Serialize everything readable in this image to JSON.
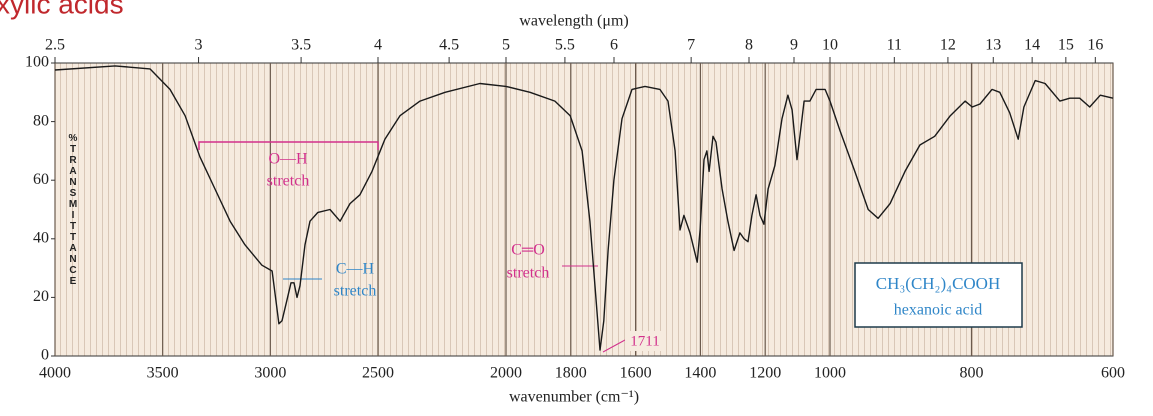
{
  "chart_data": {
    "type": "line",
    "title": "xylic acids",
    "xlabel": "wavenumber (cm⁻¹)",
    "x2label": "wavelength (μm)",
    "ylabel": "%TRANSMITTANCE",
    "xlim": [
      4000,
      600
    ],
    "x_scale_breaks": [
      2500,
      2000,
      1000
    ],
    "xticks": [
      4000,
      3500,
      3000,
      2500,
      2000,
      1800,
      1600,
      1400,
      1200,
      1000,
      800,
      600
    ],
    "x2ticks": [
      2.5,
      3,
      3.5,
      4,
      4.5,
      5,
      5.5,
      6,
      7,
      8,
      9,
      10,
      11,
      12,
      13,
      14,
      15,
      16
    ],
    "ylim": [
      0,
      100
    ],
    "yticks": [
      0,
      20,
      40,
      60,
      80,
      100
    ],
    "grid": true,
    "color": "#1a1a1a",
    "x": [
      4000,
      3721,
      3559,
      3466,
      3396,
      3327,
      3257,
      3187,
      3118,
      3039,
      2992,
      2974,
      2960,
      2946,
      2923,
      2904,
      2890,
      2876,
      2862,
      2839,
      2816,
      2779,
      2723,
      2676,
      2630,
      2584,
      2528,
      2473,
      2414,
      2336,
      2238,
      2102,
      2000,
      1926,
      1849,
      1802,
      1765,
      1741,
      1722,
      1710,
      1698,
      1685,
      1667,
      1642,
      1611,
      1571,
      1525,
      1500,
      1478,
      1463,
      1451,
      1432,
      1410,
      1401,
      1389,
      1380,
      1373,
      1361,
      1352,
      1333,
      1315,
      1296,
      1278,
      1265,
      1253,
      1241,
      1228,
      1216,
      1204,
      1191,
      1170,
      1148,
      1130,
      1117,
      1102,
      1093,
      1080,
      1062,
      1043,
      1015,
      1000,
      986,
      965,
      946,
      932,
      915,
      894,
      873,
      852,
      830,
      809,
      799,
      788,
      771,
      760,
      746,
      734,
      726,
      710,
      696,
      675,
      661,
      647,
      633,
      618,
      600
    ],
    "values": [
      97.6,
      99,
      98,
      91,
      82,
      68,
      57,
      46,
      38,
      31,
      29,
      19,
      11,
      12,
      19,
      25,
      25,
      20,
      24,
      38,
      46,
      49,
      50,
      46,
      52,
      55,
      63,
      74,
      82,
      87,
      90,
      93,
      92,
      90,
      87,
      82,
      70,
      46,
      19,
      2,
      12,
      36,
      60,
      81,
      91,
      92,
      91,
      87,
      70,
      43,
      48,
      42,
      32,
      43,
      67,
      70,
      63,
      75,
      73,
      57,
      46,
      36,
      42,
      40,
      39,
      48,
      55,
      48,
      45,
      57,
      65,
      81,
      89,
      84,
      67,
      75,
      87,
      87,
      91,
      91,
      87,
      77,
      63,
      50,
      47,
      52,
      63,
      72,
      75,
      82,
      87,
      85,
      86,
      91,
      90,
      83,
      74,
      85,
      94,
      93,
      87,
      88,
      88,
      85,
      89,
      88
    ],
    "annotations": [
      "O—H",
      "stretch",
      "C—H",
      "stretch",
      "C═O",
      "stretch",
      "1711",
      "CH₃(CH₂)₄COOH",
      "hexanoic acid"
    ]
  }
}
